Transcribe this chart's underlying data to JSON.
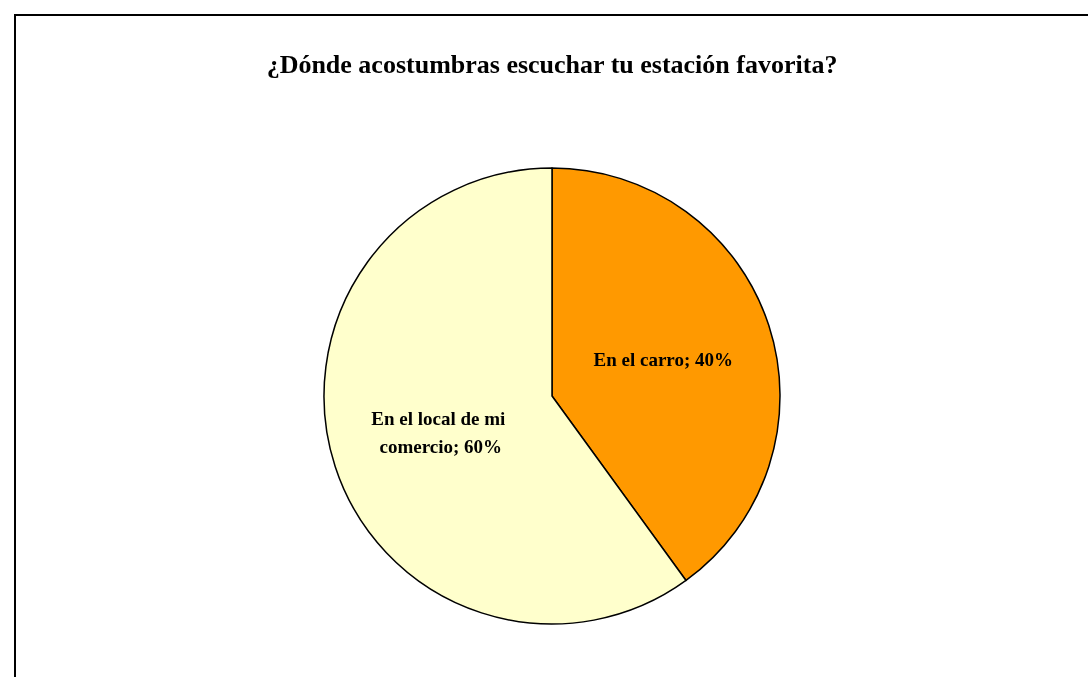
{
  "chart_data": {
    "type": "pie",
    "title": "¿Dónde acostumbras escuchar tu estación favorita?",
    "categories": [
      "En el carro",
      "En el local de mi comercio"
    ],
    "values": [
      40,
      60
    ],
    "colors": [
      "#ff9900",
      "#ffffcc"
    ],
    "value_labels": [
      "40%",
      "60%"
    ]
  }
}
